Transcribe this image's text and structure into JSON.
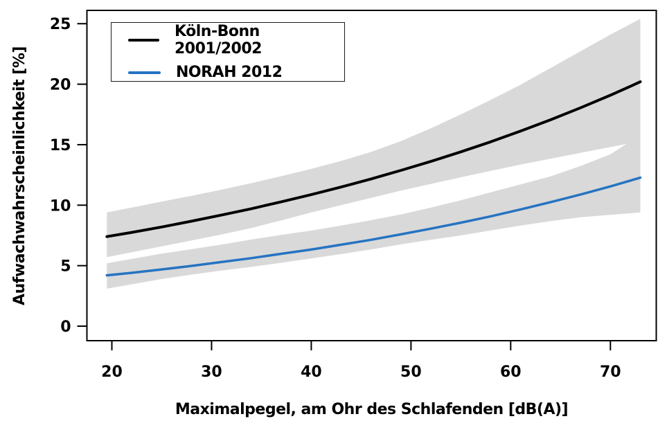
{
  "chart_data": {
    "type": "line",
    "title": "",
    "xlabel": "Maximalpegel, am Ohr des Schlafenden [dB(A)]",
    "ylabel": "Aufwachwahrscheinlichkeit [%]",
    "xlim": [
      17.5,
      74.6
    ],
    "ylim": [
      -1.2,
      26.1
    ],
    "xticks": [
      20,
      30,
      40,
      50,
      60,
      70
    ],
    "yticks": [
      0,
      5,
      10,
      15,
      20,
      25
    ],
    "grid": false,
    "legend_position": "top-left",
    "background": "#ffffff",
    "band_color": "#d9d9d9",
    "axis_color": "#000000",
    "x": [
      19.5,
      22,
      25,
      28,
      31,
      34,
      37,
      40,
      43,
      46,
      49,
      52,
      55,
      58,
      61,
      64,
      67,
      70,
      72,
      73
    ],
    "series": [
      {
        "name": "Köln-Bonn 2001/2002",
        "color": "#000000",
        "values": [
          7.4,
          7.75,
          8.2,
          8.68,
          9.18,
          9.71,
          10.28,
          10.87,
          11.5,
          12.17,
          12.88,
          13.62,
          14.41,
          15.24,
          16.13,
          17.06,
          18.05,
          19.09,
          19.82,
          20.2
        ],
        "ci_upper": [
          9.4,
          9.8,
          10.3,
          10.78,
          11.28,
          11.82,
          12.4,
          13.0,
          13.66,
          14.4,
          15.3,
          16.36,
          17.5,
          18.7,
          19.96,
          21.34,
          22.72,
          24.1,
          24.97,
          25.4
        ],
        "ci_lower": [
          5.7,
          6.11,
          6.6,
          7.08,
          7.58,
          8.12,
          8.74,
          9.4,
          10.0,
          10.6,
          11.2,
          11.76,
          12.3,
          12.84,
          13.36,
          13.84,
          14.32,
          14.8,
          15.13,
          15.3
        ]
      },
      {
        "name": "NORAH 2012",
        "color": "#2673c2",
        "values": [
          4.2,
          4.41,
          4.69,
          4.98,
          5.3,
          5.62,
          5.98,
          6.33,
          6.73,
          7.14,
          7.59,
          8.06,
          8.55,
          9.08,
          9.65,
          10.25,
          10.88,
          11.55,
          12.03,
          12.27
        ],
        "ci_upper": [
          5.2,
          5.56,
          6.0,
          6.36,
          6.74,
          7.16,
          7.54,
          7.9,
          8.32,
          8.76,
          9.24,
          9.8,
          10.4,
          11.06,
          11.72,
          12.38,
          13.24,
          14.2,
          15.27,
          15.8
        ],
        "ci_lower": [
          3.1,
          3.46,
          3.9,
          4.26,
          4.6,
          4.9,
          5.24,
          5.6,
          5.96,
          6.34,
          6.76,
          7.14,
          7.5,
          7.92,
          8.32,
          8.68,
          9.0,
          9.2,
          9.33,
          9.4
        ]
      }
    ]
  }
}
